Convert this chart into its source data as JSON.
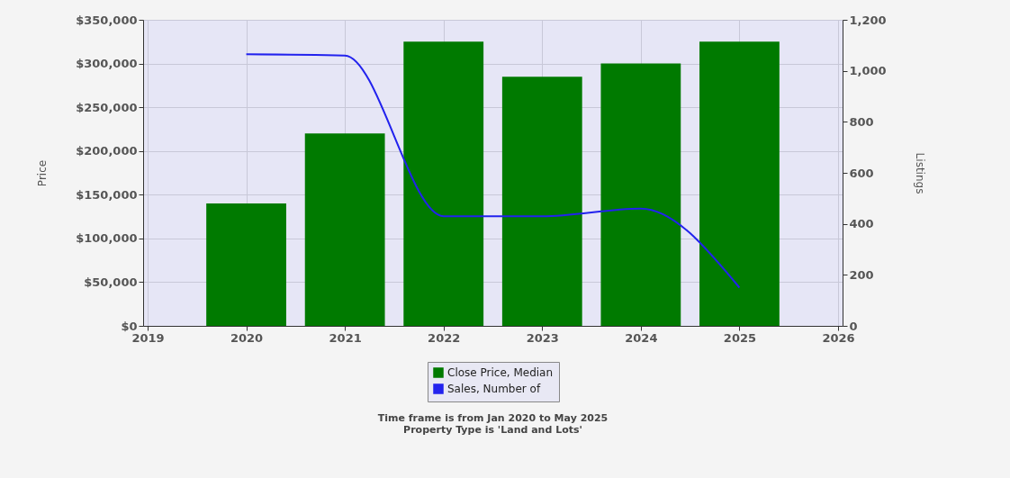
{
  "chart_data": {
    "type": "bar",
    "ylabel": "Price",
    "y2label": "Listings",
    "x": [
      2020,
      2021,
      2022,
      2023,
      2024,
      2025
    ],
    "xlim": [
      2019,
      2026
    ],
    "xticks": [
      2019,
      2020,
      2021,
      2022,
      2023,
      2024,
      2025,
      2026
    ],
    "ylim": [
      0,
      350000
    ],
    "yticks": [
      {
        "value": 0,
        "label": "$0"
      },
      {
        "value": 50000,
        "label": "$50,000"
      },
      {
        "value": 100000,
        "label": "$100,000"
      },
      {
        "value": 150000,
        "label": "$150,000"
      },
      {
        "value": 200000,
        "label": "$200,000"
      },
      {
        "value": 250000,
        "label": "$250,000"
      },
      {
        "value": 300000,
        "label": "$300,000"
      },
      {
        "value": 350000,
        "label": "$350,000"
      }
    ],
    "y2lim": [
      0,
      1200
    ],
    "y2ticks": [
      0,
      200,
      400,
      600,
      800,
      {
        "value": 1000,
        "label": "1,000"
      },
      {
        "value": 1200,
        "label": "1,200"
      }
    ],
    "series": [
      {
        "name": "Close Price, Median",
        "color": "#007a00",
        "values": [
          140000,
          220000,
          325000,
          285000,
          300000,
          325000
        ]
      },
      {
        "name": "Sales, Number of",
        "type": "line",
        "axis": "y2",
        "color": "#2222ee",
        "values": [
          1065,
          1060,
          430,
          430,
          460,
          150
        ]
      }
    ],
    "grid": true,
    "legend": "bottom",
    "line_style": "solid",
    "marker": "none",
    "annotations": [
      "Time frame is from Jan 2020 to May 2025",
      "Property Type is 'Land and Lots'"
    ]
  }
}
